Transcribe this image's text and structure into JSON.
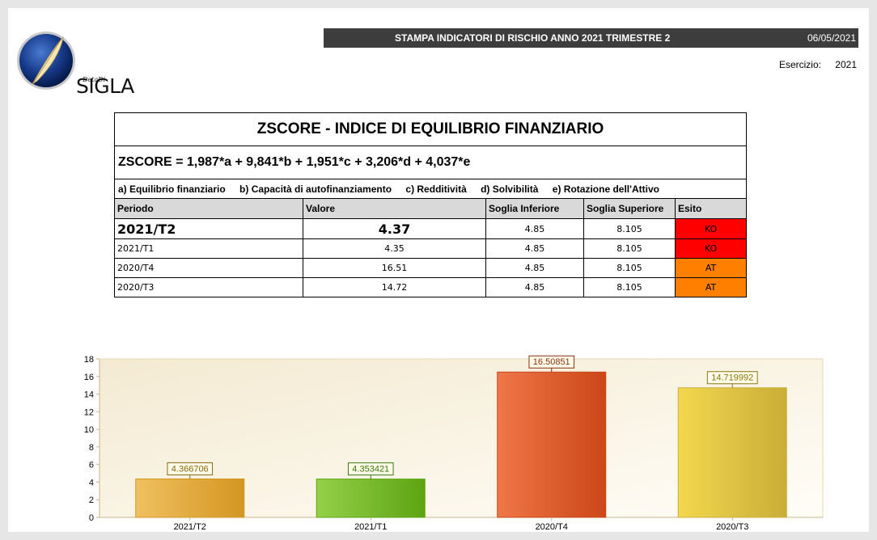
{
  "logo": {
    "brand": "SIGLA",
    "small": "DetaDi"
  },
  "header": {
    "title": "STAMPA INDICATORI DI RISCHIO ANNO 2021 TRIMESTRE 2",
    "date": "06/05/2021",
    "esercizio_label": "Esercizio:",
    "esercizio_value": "2021"
  },
  "zscore": {
    "title": "ZSCORE - INDICE DI EQUILIBRIO FINANZIARIO",
    "formula": "ZSCORE = 1,987*a + 9,841*b + 1,951*c + 3,206*d + 4,037*e",
    "legend": [
      "a) Equilibrio finanziario",
      "b) Capacità di autofinanziamento",
      "c) Redditività",
      "d) Solvibilità",
      "e) Rotazione dell'Attivo"
    ],
    "columns": [
      "Periodo",
      "Valore",
      "Soglia Inferiore",
      "Soglia Superiore",
      "Esito"
    ],
    "rows": [
      {
        "periodo": "2021/T2",
        "valore": "4.37",
        "inf": "4.85",
        "sup": "8.105",
        "esito": "KO"
      },
      {
        "periodo": "2021/T1",
        "valore": "4.35",
        "inf": "4.85",
        "sup": "8.105",
        "esito": "KO"
      },
      {
        "periodo": "2020/T4",
        "valore": "16.51",
        "inf": "4.85",
        "sup": "8.105",
        "esito": "AT"
      },
      {
        "periodo": "2020/T3",
        "valore": "14.72",
        "inf": "4.85",
        "sup": "8.105",
        "esito": "AT"
      }
    ],
    "esito_colors": {
      "KO": "#ff0000",
      "AT": "#ff7f00"
    }
  },
  "chart_data": {
    "type": "bar",
    "categories": [
      "2021/T2",
      "2021/T1",
      "2020/T4",
      "2020/T3"
    ],
    "values": [
      4.366706,
      4.353421,
      16.50851,
      14.719992
    ],
    "labels": [
      "4.366706",
      "4.353421",
      "16.50851",
      "14.719992"
    ],
    "ylim": [
      0,
      18
    ],
    "yticks": [
      0,
      2,
      4,
      6,
      8,
      10,
      12,
      14,
      16,
      18
    ],
    "colors": [
      [
        "#f0c060",
        "#d39622"
      ],
      [
        "#94d04a",
        "#5ea412"
      ],
      [
        "#ee7748",
        "#cc4618"
      ],
      [
        "#f2d84e",
        "#c9ad38"
      ]
    ],
    "label_colors": [
      "#8a6a10",
      "#3a7a10",
      "#8a3010",
      "#8a7a10"
    ],
    "grid": false,
    "legend": "none"
  }
}
